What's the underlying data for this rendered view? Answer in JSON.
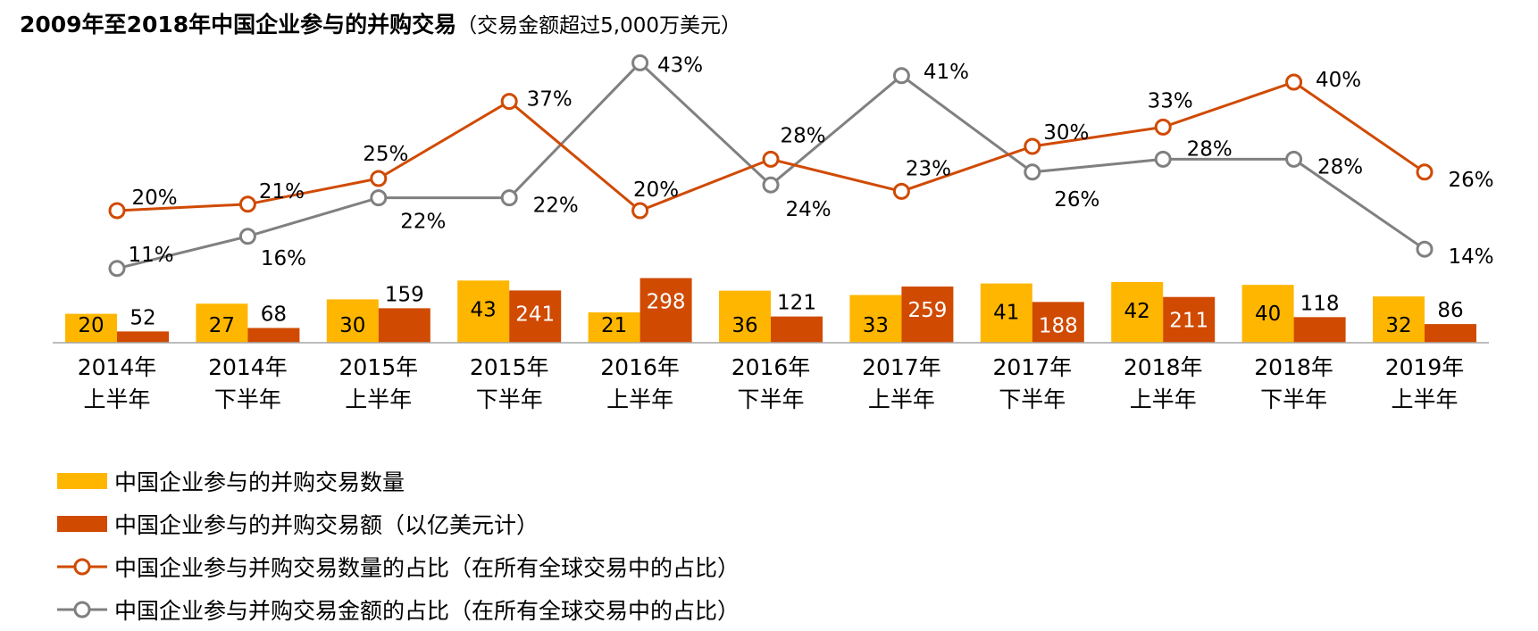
{
  "title": {
    "main": "2009年至2018年中国企业参与的并购交易",
    "sub": "（交易金额超过5,000万美元）"
  },
  "colors": {
    "count_bar": "#ffb600",
    "value_bar": "#d04a02",
    "count_share_line": "#d04a02",
    "value_share_line": "#808080",
    "axis": "#a6a6a6"
  },
  "chart_data": {
    "type": "bar",
    "categories": [
      [
        "2014年",
        "上半年"
      ],
      [
        "2014年",
        "下半年"
      ],
      [
        "2015年",
        "上半年"
      ],
      [
        "2015年",
        "下半年"
      ],
      [
        "2016年",
        "上半年"
      ],
      [
        "2016年",
        "下半年"
      ],
      [
        "2017年",
        "上半年"
      ],
      [
        "2017年",
        "下半年"
      ],
      [
        "2018年",
        "上半年"
      ],
      [
        "2018年",
        "下半年"
      ],
      [
        "2019年",
        "上半年"
      ]
    ],
    "series": [
      {
        "name": "中国企业参与的并购交易数量",
        "kind": "bar",
        "values": [
          20,
          27,
          30,
          43,
          21,
          36,
          33,
          41,
          42,
          40,
          32
        ]
      },
      {
        "name": "中国企业参与的并购交易额（以亿美元计）",
        "kind": "bar",
        "values": [
          52,
          68,
          159,
          241,
          298,
          121,
          259,
          188,
          211,
          118,
          86
        ]
      },
      {
        "name": "中国企业参与并购交易数量的占比（在所有全球交易中的占比）",
        "kind": "line",
        "values": [
          20,
          21,
          25,
          37,
          20,
          28,
          23,
          30,
          33,
          40,
          26
        ],
        "labels": [
          "20%",
          "21%",
          "25%",
          "37%",
          "20%",
          "28%",
          "23%",
          "30%",
          "33%",
          "40%",
          "26%"
        ]
      },
      {
        "name": "中国企业参与并购交易金额的占比（在所有全球交易中的占比）",
        "kind": "line",
        "values": [
          11,
          16,
          22,
          22,
          43,
          24,
          41,
          26,
          28,
          28,
          14
        ],
        "labels": [
          "11%",
          "16%",
          "22%",
          "22%",
          "43%",
          "24%",
          "41%",
          "26%",
          "28%",
          "28%",
          "14%"
        ]
      }
    ],
    "legend_position": "bottom-left",
    "grid": false
  }
}
